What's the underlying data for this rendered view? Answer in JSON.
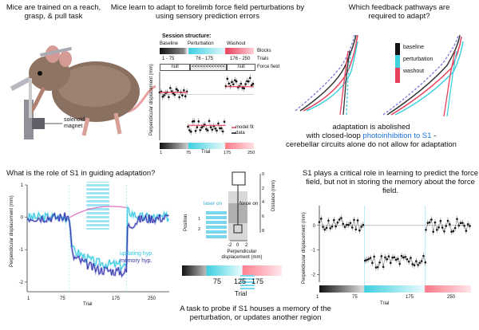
{
  "titles": {
    "top_left": "Mice are trained on a reach, grasp, & pull task",
    "top_center": "Mice learn to adapt to forelimb force field perturbations by using sensory prediction errors",
    "top_right": "Which feedback pathways are required to adapt?",
    "bottom_left": "What is the role of S1 in guiding adaptation?",
    "bottom_right": "S1 plays a critical role in learning to predict the force field, but not in storing the memory about the force field.",
    "bottom_center": "A task to probe if S1 houses a memory of the perturbation, or updates another region"
  },
  "mouse_panel": {
    "solenoid_label": "solenoid magnet"
  },
  "session": {
    "title": "Session structure:",
    "phases": [
      "Baseline",
      "Perturbation",
      "Washout"
    ],
    "trials": [
      "1 - 75",
      "76 - 175",
      "176 - 250"
    ],
    "force_fields": [
      "null",
      "<<<<<<<<<<<<",
      "null"
    ],
    "row_labels": [
      "Blocks",
      "Trials",
      "Force field"
    ]
  },
  "adaptation_text": {
    "line1": "adaptation is abolished",
    "line2_prefix": "with closed-loop ",
    "line2_highlight": "photoinhibition to S1",
    "line2_suffix": " -",
    "line3": "cerebellar circuits alone do not allow for adaptation"
  },
  "colors": {
    "baseline": "#333333",
    "perturbation": "#3fd0e0",
    "washout": "#e8405a",
    "highlight_text": "#1a6fd6",
    "updating": "#30c8e0",
    "memory": "#3030b0",
    "laser": "#7ad8ee"
  },
  "chart_data": [
    {
      "id": "force-field-learning",
      "type": "scatter",
      "title": "",
      "xlabel": "Trial",
      "ylabel": "Perpendicular displacement (mm)",
      "xticks": [
        "1",
        "75",
        "175",
        "250"
      ],
      "xlim": [
        1,
        250
      ],
      "ylim": [
        -2,
        1
      ],
      "legend": [
        "model fit",
        "data"
      ],
      "series": [
        {
          "name": "data",
          "segments": [
            {
              "x_start": 1,
              "x_end": 75,
              "value": 0.1
            },
            {
              "x_start": 76,
              "x_end": 175,
              "value": -1.4
            },
            {
              "x_start": 176,
              "x_end": 250,
              "value": 0.5
            }
          ]
        },
        {
          "name": "model fit",
          "segments": [
            {
              "x_start": 1,
              "x_end": 75,
              "value": 0.1
            },
            {
              "x_start": 76,
              "x_end": 175,
              "value": -1.35
            },
            {
              "x_start": 176,
              "x_end": 250,
              "value": 0.35
            }
          ]
        }
      ]
    },
    {
      "id": "feedback-pathways",
      "type": "line",
      "legend": [
        "baseline",
        "perturbation",
        "washout"
      ]
    },
    {
      "id": "s1-role-hypotheses",
      "type": "line",
      "xlabel": "Trial",
      "ylabel": "Perpendicular displacement (mm)",
      "xticks": [
        "1",
        "75",
        "175",
        "250"
      ],
      "yticks": [
        "1",
        "0",
        "-1",
        "-2"
      ],
      "ylim": [
        -2.3,
        1
      ],
      "legend": [
        "updating hyp.",
        "memory hyp."
      ],
      "series": [
        {
          "name": "updating hyp.",
          "points": [
            [
              1,
              0
            ],
            [
              75,
              0
            ],
            [
              80,
              -1.0
            ],
            [
              120,
              -1.4
            ],
            [
              175,
              -1.5
            ],
            [
              176,
              0.2
            ],
            [
              200,
              0
            ],
            [
              250,
              0
            ]
          ]
        },
        {
          "name": "memory hyp.",
          "points": [
            [
              1,
              0
            ],
            [
              75,
              0
            ],
            [
              80,
              -1.2
            ],
            [
              120,
              -1.6
            ],
            [
              175,
              -1.7
            ],
            [
              176,
              -0.3
            ],
            [
              200,
              -0.05
            ],
            [
              250,
              0
            ]
          ]
        }
      ]
    },
    {
      "id": "s1-probe-task",
      "type": "line",
      "labels": {
        "position": "Position",
        "laser_on": "laser on",
        "force_on": "force on",
        "distance": "Distance (mm)",
        "xlabel": "Perpendicular displacement (mm)"
      },
      "position_ticks": [
        "1",
        "2"
      ],
      "distance_ticks": [
        "0",
        "2",
        "4",
        "6",
        "8"
      ],
      "x_ticks": [
        "-2",
        "0",
        "2"
      ],
      "trial_bar": {
        "xlabel": "Trial",
        "ticks": [
          "75",
          "125",
          "175"
        ]
      }
    },
    {
      "id": "s1-learning-result",
      "type": "scatter",
      "xlabel": "Trial",
      "ylabel": "Perpendicular displacement (mm)",
      "xticks": [
        "1",
        "75",
        "175",
        "250"
      ],
      "yticks": [
        "0",
        "-1",
        "-2"
      ],
      "ylim": [
        -2.3,
        0.8
      ],
      "series": [
        {
          "name": "data",
          "segments": [
            {
              "x_start": 1,
              "x_end": 75,
              "value": 0.05
            },
            {
              "x_start": 76,
              "x_end": 175,
              "value": -1.45
            },
            {
              "x_start": 176,
              "x_end": 250,
              "value": 0.0
            }
          ]
        }
      ]
    }
  ]
}
